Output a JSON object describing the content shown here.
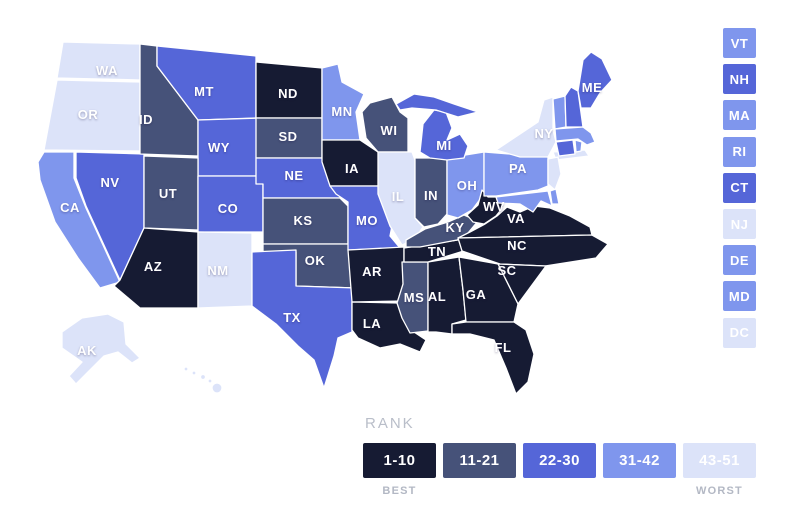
{
  "page": {
    "background": "#ffffff"
  },
  "legend": {
    "title": "RANK",
    "best_label": "BEST",
    "worst_label": "WORST",
    "buckets": [
      {
        "label": "1-10",
        "color": "#161b33"
      },
      {
        "label": "11-21",
        "color": "#465279"
      },
      {
        "label": "22-30",
        "color": "#5566d8"
      },
      {
        "label": "31-42",
        "color": "#7f96ed"
      },
      {
        "label": "43-51",
        "color": "#dce3f9"
      }
    ]
  },
  "map": {
    "states": [
      {
        "id": "WA",
        "label": "WA",
        "bucket": "43-51"
      },
      {
        "id": "OR",
        "label": "OR",
        "bucket": "43-51"
      },
      {
        "id": "CA",
        "label": "CA",
        "bucket": "31-42"
      },
      {
        "id": "NV",
        "label": "NV",
        "bucket": "22-30"
      },
      {
        "id": "ID",
        "label": "ID",
        "bucket": "11-21"
      },
      {
        "id": "MT",
        "label": "MT",
        "bucket": "22-30"
      },
      {
        "id": "WY",
        "label": "WY",
        "bucket": "22-30"
      },
      {
        "id": "UT",
        "label": "UT",
        "bucket": "11-21"
      },
      {
        "id": "CO",
        "label": "CO",
        "bucket": "22-30"
      },
      {
        "id": "AZ",
        "label": "AZ",
        "bucket": "1-10"
      },
      {
        "id": "NM",
        "label": "NM",
        "bucket": "43-51"
      },
      {
        "id": "AK",
        "label": "AK",
        "bucket": "43-51"
      },
      {
        "id": "HI",
        "label": "",
        "bucket": "43-51"
      },
      {
        "id": "ND",
        "label": "ND",
        "bucket": "1-10"
      },
      {
        "id": "SD",
        "label": "SD",
        "bucket": "11-21"
      },
      {
        "id": "NE",
        "label": "NE",
        "bucket": "22-30"
      },
      {
        "id": "KS",
        "label": "KS",
        "bucket": "11-21"
      },
      {
        "id": "OK",
        "label": "OK",
        "bucket": "11-21"
      },
      {
        "id": "TX",
        "label": "TX",
        "bucket": "22-30"
      },
      {
        "id": "MN",
        "label": "MN",
        "bucket": "31-42"
      },
      {
        "id": "IA",
        "label": "IA",
        "bucket": "1-10"
      },
      {
        "id": "MO",
        "label": "MO",
        "bucket": "22-30"
      },
      {
        "id": "AR",
        "label": "AR",
        "bucket": "1-10"
      },
      {
        "id": "LA",
        "label": "LA",
        "bucket": "1-10"
      },
      {
        "id": "WI",
        "label": "WI",
        "bucket": "11-21"
      },
      {
        "id": "IL",
        "label": "IL",
        "bucket": "43-51"
      },
      {
        "id": "MS",
        "label": "MS",
        "bucket": "11-21"
      },
      {
        "id": "AL",
        "label": "AL",
        "bucket": "1-10"
      },
      {
        "id": "TN",
        "label": "TN",
        "bucket": "1-10"
      },
      {
        "id": "KY",
        "label": "KY",
        "bucket": "11-21"
      },
      {
        "id": "IN",
        "label": "IN",
        "bucket": "11-21"
      },
      {
        "id": "OH",
        "label": "OH",
        "bucket": "31-42"
      },
      {
        "id": "MI",
        "label": "MI",
        "bucket": "22-30"
      },
      {
        "id": "WV",
        "label": "WV",
        "bucket": "1-10"
      },
      {
        "id": "VA",
        "label": "VA",
        "bucket": "1-10"
      },
      {
        "id": "NC",
        "label": "NC",
        "bucket": "1-10"
      },
      {
        "id": "SC",
        "label": "SC",
        "bucket": "1-10"
      },
      {
        "id": "GA",
        "label": "GA",
        "bucket": "1-10"
      },
      {
        "id": "FL",
        "label": "FL",
        "bucket": "1-10"
      },
      {
        "id": "PA",
        "label": "PA",
        "bucket": "31-42"
      },
      {
        "id": "NY",
        "label": "NY",
        "bucket": "43-51"
      },
      {
        "id": "ME",
        "label": "ME",
        "bucket": "22-30"
      },
      {
        "id": "VT",
        "label": "VT",
        "bucket": "31-42"
      },
      {
        "id": "NH",
        "label": "NH",
        "bucket": "22-30"
      },
      {
        "id": "MA",
        "label": "MA",
        "bucket": "31-42"
      },
      {
        "id": "CT",
        "label": "CT",
        "bucket": "22-30"
      },
      {
        "id": "RI",
        "label": "RI",
        "bucket": "31-42"
      },
      {
        "id": "NJ",
        "label": "NJ",
        "bucket": "43-51"
      },
      {
        "id": "DE",
        "label": "DE",
        "bucket": "31-42"
      },
      {
        "id": "MD",
        "label": "MD",
        "bucket": "31-42"
      },
      {
        "id": "DC",
        "label": "DC",
        "bucket": "43-51"
      }
    ]
  },
  "northeast_column": [
    "VT",
    "NH",
    "MA",
    "RI",
    "CT",
    "NJ",
    "DE",
    "MD",
    "DC"
  ]
}
